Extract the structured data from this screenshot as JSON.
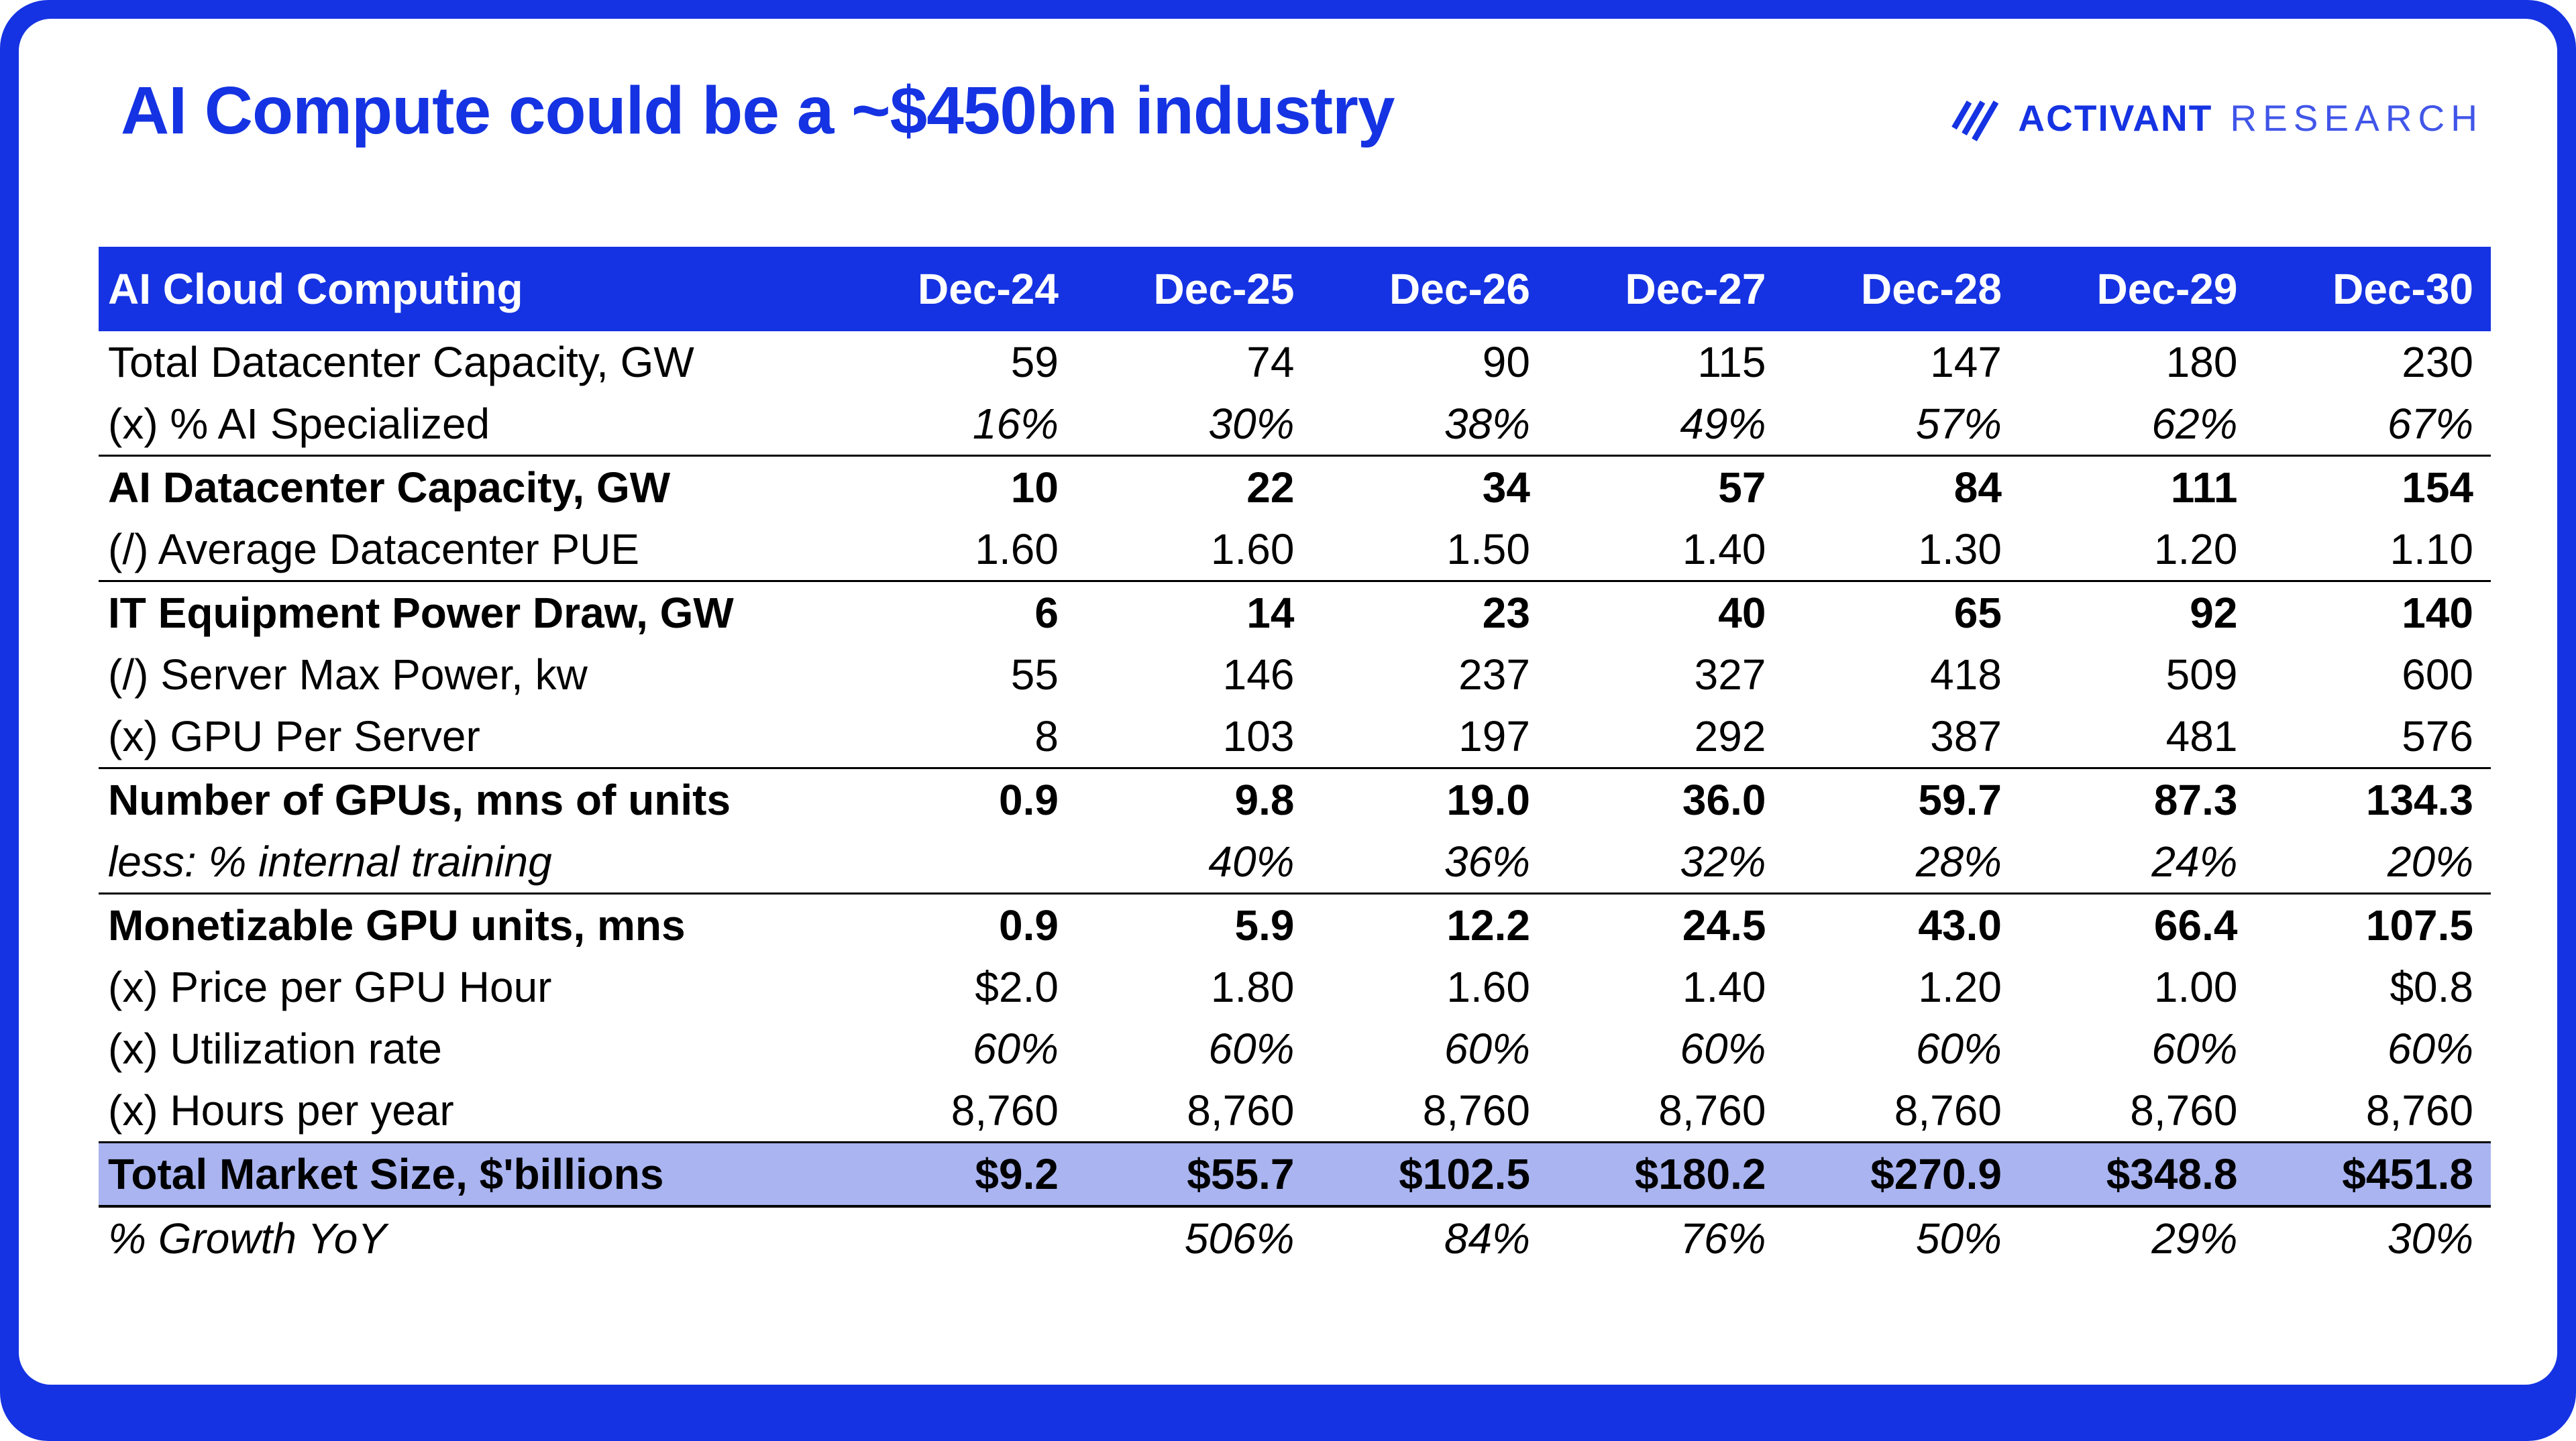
{
  "page": {
    "title": "AI Compute could be a ~$450bn industry",
    "logo": {
      "icon": "triple-slash-icon",
      "name": "ACTIVANT",
      "suffix": "RESEARCH"
    }
  },
  "colors": {
    "accent": "#1533E2",
    "frame": "#1533E2",
    "highlight": "#A9B4F0",
    "header_text": "#FFFFFF"
  },
  "chart_data": {
    "type": "table",
    "title": "AI Compute could be a ~$450bn industry",
    "columns": [
      "AI Cloud Computing",
      "Dec-24",
      "Dec-25",
      "Dec-26",
      "Dec-27",
      "Dec-28",
      "Dec-29",
      "Dec-30"
    ],
    "rows": [
      {
        "label": "Total Datacenter Capacity, GW",
        "values": [
          "59",
          "74",
          "90",
          "115",
          "147",
          "180",
          "230"
        ]
      },
      {
        "label": "(x) % AI Specialized",
        "value_style": "italic",
        "values": [
          "16%",
          "30%",
          "38%",
          "49%",
          "57%",
          "62%",
          "67%"
        ]
      },
      {
        "label": "AI Datacenter Capacity, GW",
        "label_style": "bold",
        "value_style": "bold",
        "border_top": true,
        "values": [
          "10",
          "22",
          "34",
          "57",
          "84",
          "111",
          "154"
        ]
      },
      {
        "label": "(/) Average Datacenter PUE",
        "values": [
          "1.60",
          "1.60",
          "1.50",
          "1.40",
          "1.30",
          "1.20",
          "1.10"
        ]
      },
      {
        "label": "IT Equipment Power Draw, GW",
        "label_style": "bold",
        "value_style": "bold",
        "border_top": true,
        "values": [
          "6",
          "14",
          "23",
          "40",
          "65",
          "92",
          "140"
        ]
      },
      {
        "label": "(/) Server Max Power, kw",
        "values": [
          "55",
          "146",
          "237",
          "327",
          "418",
          "509",
          "600"
        ]
      },
      {
        "label": "(x) GPU Per Server",
        "values": [
          "8",
          "103",
          "197",
          "292",
          "387",
          "481",
          "576"
        ]
      },
      {
        "label": "Number of GPUs, mns of units",
        "label_style": "bold",
        "value_style": "bold",
        "border_top": true,
        "values": [
          "0.9",
          "9.8",
          "19.0",
          "36.0",
          "59.7",
          "87.3",
          "134.3"
        ]
      },
      {
        "label": "less: % internal training",
        "label_style": "italic",
        "value_style": "italic",
        "values": [
          "",
          "40%",
          "36%",
          "32%",
          "28%",
          "24%",
          "20%"
        ]
      },
      {
        "label": "Monetizable GPU units, mns",
        "label_style": "bold",
        "value_style": "bold",
        "border_top": true,
        "values": [
          "0.9",
          "5.9",
          "12.2",
          "24.5",
          "43.0",
          "66.4",
          "107.5"
        ]
      },
      {
        "label": "(x) Price per GPU Hour",
        "values": [
          "$2.0",
          "1.80",
          "1.60",
          "1.40",
          "1.20",
          "1.00",
          "$0.8"
        ]
      },
      {
        "label": "(x) Utilization rate",
        "value_style": "italic",
        "values": [
          "60%",
          "60%",
          "60%",
          "60%",
          "60%",
          "60%",
          "60%"
        ]
      },
      {
        "label": "(x) Hours per year",
        "values": [
          "8,760",
          "8,760",
          "8,760",
          "8,760",
          "8,760",
          "8,760",
          "8,760"
        ]
      },
      {
        "label": "Total Market Size, $'billions",
        "label_style": "bold",
        "value_style": "bold",
        "highlight": true,
        "border_top": true,
        "border_bottom": true,
        "values": [
          "$9.2",
          "$55.7",
          "$102.5",
          "$180.2",
          "$270.9",
          "$348.8",
          "$451.8"
        ]
      },
      {
        "label": "% Growth YoY",
        "label_style": "italic",
        "value_style": "italic",
        "values": [
          "",
          "506%",
          "84%",
          "76%",
          "50%",
          "29%",
          "30%"
        ]
      }
    ],
    "layout": {
      "label_col_width": "31%",
      "legend": "none",
      "grid": "off",
      "highlight_row": "Total Market Size, $'billions"
    }
  }
}
